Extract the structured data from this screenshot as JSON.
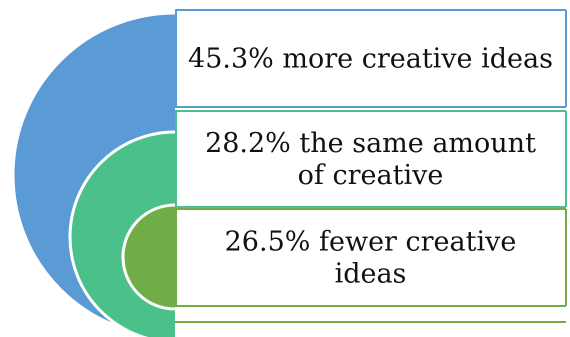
{
  "chart_data": {
    "type": "nested-semicircle",
    "title": "",
    "segments": [
      {
        "label_lines": [
          "45.3% more creative ideas"
        ],
        "value": 45.3,
        "color": "#5B9BD5",
        "border_color": "#5B9BD5"
      },
      {
        "label_lines": [
          "28.2% the same amount",
          "of creative"
        ],
        "value": 28.2,
        "color": "#4CC08A",
        "border_color": "#4CC08A"
      },
      {
        "label_lines": [
          "26.5% fewer creative",
          "ideas"
        ],
        "value": 26.5,
        "color": "#70AD47",
        "border_color": "#70AD47"
      }
    ]
  }
}
